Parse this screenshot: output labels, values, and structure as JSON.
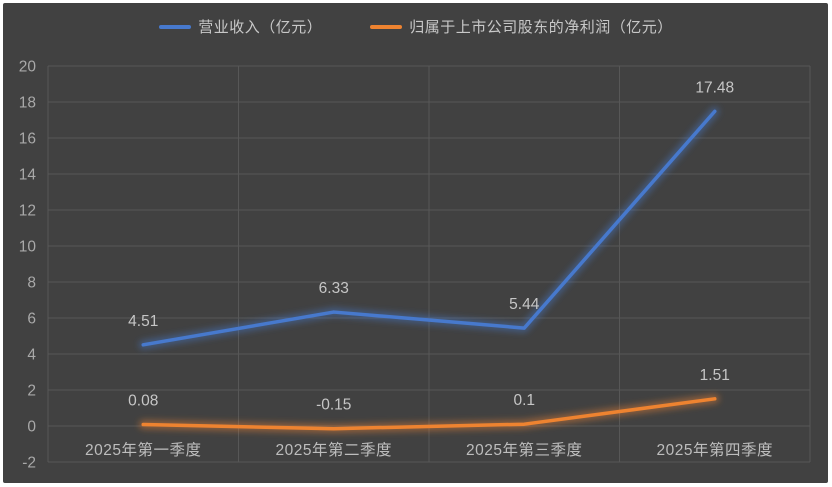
{
  "legend": {
    "items": [
      {
        "label": "营业收入（亿元）",
        "color": "#4779cd"
      },
      {
        "label": "归属于上市公司股东的净利润（亿元）",
        "color": "#ee8330"
      }
    ]
  },
  "chart_data": {
    "type": "line",
    "title": "",
    "categories": [
      "2025年第一季度",
      "2025年第二季度",
      "2025年第三季度",
      "2025年第四季度"
    ],
    "series": [
      {
        "name": "营业收入（亿元）",
        "color": "#4779cd",
        "values": [
          4.51,
          6.33,
          5.44,
          17.48
        ],
        "labels": [
          "4.51",
          "6.33",
          "5.44",
          "17.48"
        ]
      },
      {
        "name": "归属于上市公司股东的净利润（亿元）",
        "color": "#ee8330",
        "values": [
          0.08,
          -0.15,
          0.1,
          1.51
        ],
        "labels": [
          "0.08",
          "-0.15",
          "0.1",
          "1.51"
        ]
      }
    ],
    "xlabel": "",
    "ylabel": "",
    "ylim": [
      -2,
      20
    ],
    "ytick_step": 2,
    "ytick_labels": [
      "-2",
      "0",
      "2",
      "4",
      "6",
      "8",
      "10",
      "12",
      "14",
      "16",
      "18",
      "20"
    ],
    "grid": "both",
    "legend_position": "top",
    "line_effect": "glow"
  },
  "colors": {
    "chart_background": "#414141",
    "frame_border": "#ffffff",
    "gridline": "#575757",
    "tick_text": "#a9a9a9",
    "category_text": "#bdbdbd",
    "data_label_text": "#c6c6c6"
  }
}
